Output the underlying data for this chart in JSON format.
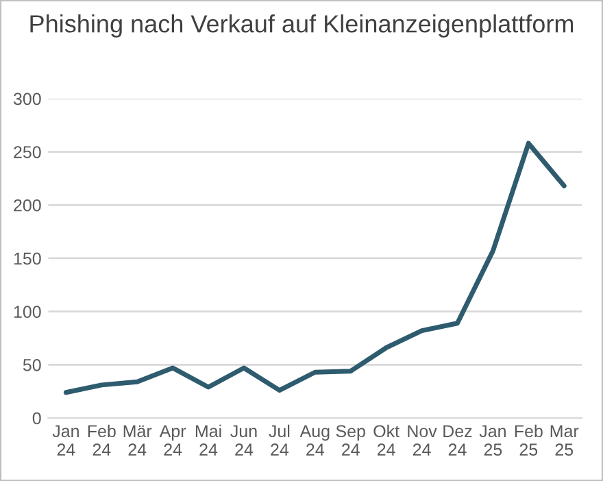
{
  "chart_data": {
    "type": "line",
    "title": "Phishing nach Verkauf auf Kleinanzeigenplattform",
    "categories": [
      "Jan 24",
      "Feb 24",
      "Mär 24",
      "Apr 24",
      "Mai 24",
      "Jun 24",
      "Jul 24",
      "Aug 24",
      "Sep 24",
      "Okt 24",
      "Nov 24",
      "Dez 24",
      "Jan 25",
      "Feb 25",
      "Mar 25"
    ],
    "series": [
      {
        "color": "#2e5b6e",
        "values": [
          24,
          31,
          34,
          47,
          29,
          47,
          26,
          43,
          44,
          66,
          82,
          89,
          157,
          258,
          218
        ]
      }
    ],
    "ylim": [
      0,
      300
    ],
    "yticks": [
      0,
      50,
      100,
      150,
      200,
      250,
      300
    ],
    "grid": "y",
    "marker": "none",
    "line_style": "solid"
  }
}
